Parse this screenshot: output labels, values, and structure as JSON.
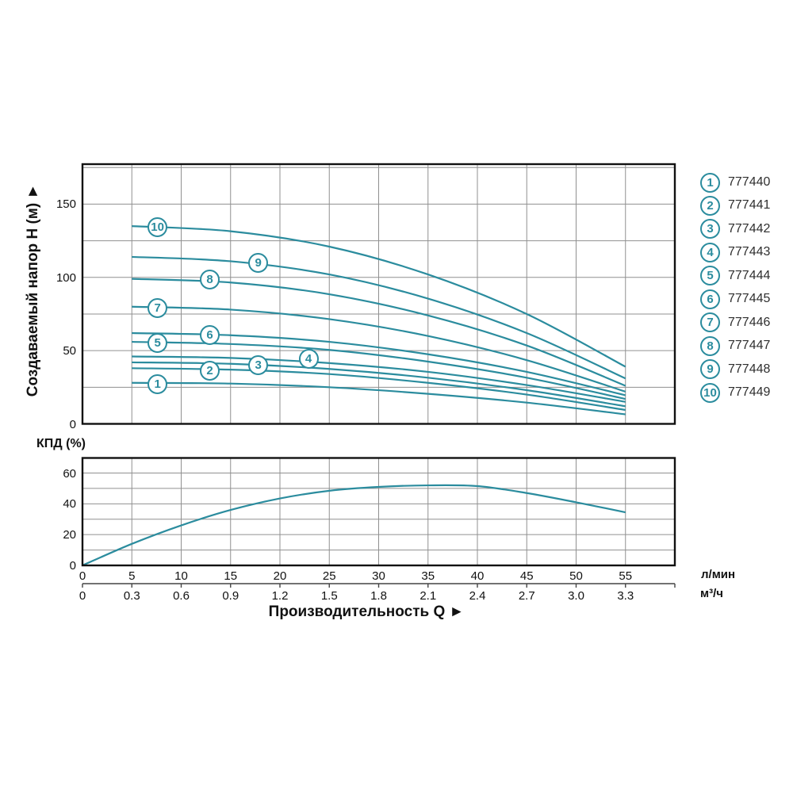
{
  "colors": {
    "curve": "#2b8c9e",
    "grid": "#909090",
    "axis": "#111111",
    "secondary_axis": "#444444",
    "text": "#111111"
  },
  "chart_data": [
    {
      "id": "head-flow-chart",
      "type": "line",
      "title": "",
      "xlabel": "Производительность Q",
      "ylabel": "Создаваемый напор H (м) ►",
      "xlim": [
        0,
        60
      ],
      "ylim": [
        0,
        177
      ],
      "grid": true,
      "x_grid_step": 5,
      "y_grid_step": 25,
      "y_ticks": [
        "0",
        "50",
        "100",
        "150"
      ],
      "series": [
        {
          "label": "1",
          "model": "777440",
          "label_pos": [
            7.6,
            26.8
          ],
          "points": [
            [
              5,
              28
            ],
            [
              15,
              27.5
            ],
            [
              25,
              25
            ],
            [
              35,
              20.5
            ],
            [
              45,
              14.5
            ],
            [
              55,
              6.5
            ]
          ]
        },
        {
          "label": "2",
          "model": "777441",
          "label_pos": [
            12.9,
            36.3
          ],
          "points": [
            [
              5,
              38
            ],
            [
              15,
              37
            ],
            [
              25,
              34
            ],
            [
              35,
              28
            ],
            [
              45,
              20
            ],
            [
              55,
              9.5
            ]
          ]
        },
        {
          "label": "3",
          "model": "777442",
          "label_pos": [
            17.8,
            39.8
          ],
          "points": [
            [
              5,
              42
            ],
            [
              15,
              41
            ],
            [
              25,
              37.5
            ],
            [
              35,
              31.5
            ],
            [
              45,
              23
            ],
            [
              55,
              12
            ]
          ]
        },
        {
          "label": "4",
          "model": "777443",
          "label_pos": [
            22.9,
            44.2
          ],
          "points": [
            [
              5,
              46
            ],
            [
              15,
              45
            ],
            [
              25,
              41.5
            ],
            [
              35,
              35.5
            ],
            [
              45,
              26.5
            ],
            [
              55,
              15
            ]
          ]
        },
        {
          "label": "5",
          "model": "777444",
          "label_pos": [
            7.6,
            55.3
          ],
          "points": [
            [
              5,
              56
            ],
            [
              15,
              54.5
            ],
            [
              25,
              50.5
            ],
            [
              35,
              42.5
            ],
            [
              45,
              31.5
            ],
            [
              55,
              17
            ]
          ]
        },
        {
          "label": "6",
          "model": "777445",
          "label_pos": [
            12.9,
            60.8
          ],
          "points": [
            [
              5,
              62
            ],
            [
              15,
              60.5
            ],
            [
              25,
              56
            ],
            [
              35,
              47.5
            ],
            [
              45,
              35.5
            ],
            [
              55,
              19.5
            ]
          ]
        },
        {
          "label": "7",
          "model": "777446",
          "label_pos": [
            7.6,
            79
          ],
          "points": [
            [
              5,
              80
            ],
            [
              15,
              78
            ],
            [
              25,
              71.5
            ],
            [
              35,
              60
            ],
            [
              45,
              43.5
            ],
            [
              55,
              22
            ]
          ]
        },
        {
          "label": "8",
          "model": "777447",
          "label_pos": [
            12.9,
            98.5
          ],
          "points": [
            [
              5,
              99
            ],
            [
              15,
              96.5
            ],
            [
              25,
              88.5
            ],
            [
              35,
              74
            ],
            [
              45,
              53.5
            ],
            [
              55,
              26
            ]
          ]
        },
        {
          "label": "9",
          "model": "777448",
          "label_pos": [
            17.8,
            110
          ],
          "points": [
            [
              5,
              114
            ],
            [
              15,
              111
            ],
            [
              25,
              102
            ],
            [
              35,
              85.5
            ],
            [
              45,
              62
            ],
            [
              55,
              31
            ]
          ]
        },
        {
          "label": "10",
          "model": "777449",
          "label_pos": [
            7.6,
            134.5
          ],
          "points": [
            [
              5,
              135
            ],
            [
              15,
              131.5
            ],
            [
              25,
              121
            ],
            [
              35,
              102
            ],
            [
              45,
              75
            ],
            [
              55,
              39
            ]
          ]
        }
      ]
    },
    {
      "id": "efficiency-chart",
      "type": "line",
      "title": "КПД (%)",
      "xlim": [
        0,
        60
      ],
      "ylim": [
        0,
        69.8
      ],
      "grid": true,
      "x_grid_step": 5,
      "y_grid_step": 10,
      "y_ticks": [
        "0",
        "20",
        "40",
        "60"
      ],
      "series": [
        {
          "label": "КПД",
          "points": [
            [
              0,
              0
            ],
            [
              5,
              14
            ],
            [
              10,
              26
            ],
            [
              15,
              36
            ],
            [
              20,
              43.5
            ],
            [
              25,
              48.5
            ],
            [
              30,
              51
            ],
            [
              35,
              52
            ],
            [
              40,
              51.5
            ],
            [
              45,
              47
            ],
            [
              50,
              41
            ],
            [
              55,
              34.5
            ]
          ]
        }
      ]
    }
  ],
  "x_axis": {
    "ticks_lmin": [
      "0",
      "5",
      "10",
      "15",
      "20",
      "25",
      "30",
      "35",
      "40",
      "45",
      "50",
      "55"
    ],
    "ticks_m3h": [
      "0",
      "0.3",
      "0.6",
      "0.9",
      "1.2",
      "1.5",
      "1.8",
      "2.1",
      "2.4",
      "2.7",
      "3.0",
      "3.3"
    ],
    "unit_lmin": "л/мин",
    "unit_m3h": "м³/ч",
    "title": "Производительность Q ►"
  },
  "legend": {
    "items": [
      {
        "num": "1",
        "model": "777440"
      },
      {
        "num": "2",
        "model": "777441"
      },
      {
        "num": "3",
        "model": "777442"
      },
      {
        "num": "4",
        "model": "777443"
      },
      {
        "num": "5",
        "model": "777444"
      },
      {
        "num": "6",
        "model": "777445"
      },
      {
        "num": "7",
        "model": "777446"
      },
      {
        "num": "8",
        "model": "777447"
      },
      {
        "num": "9",
        "model": "777448"
      },
      {
        "num": "10",
        "model": "777449"
      }
    ]
  }
}
